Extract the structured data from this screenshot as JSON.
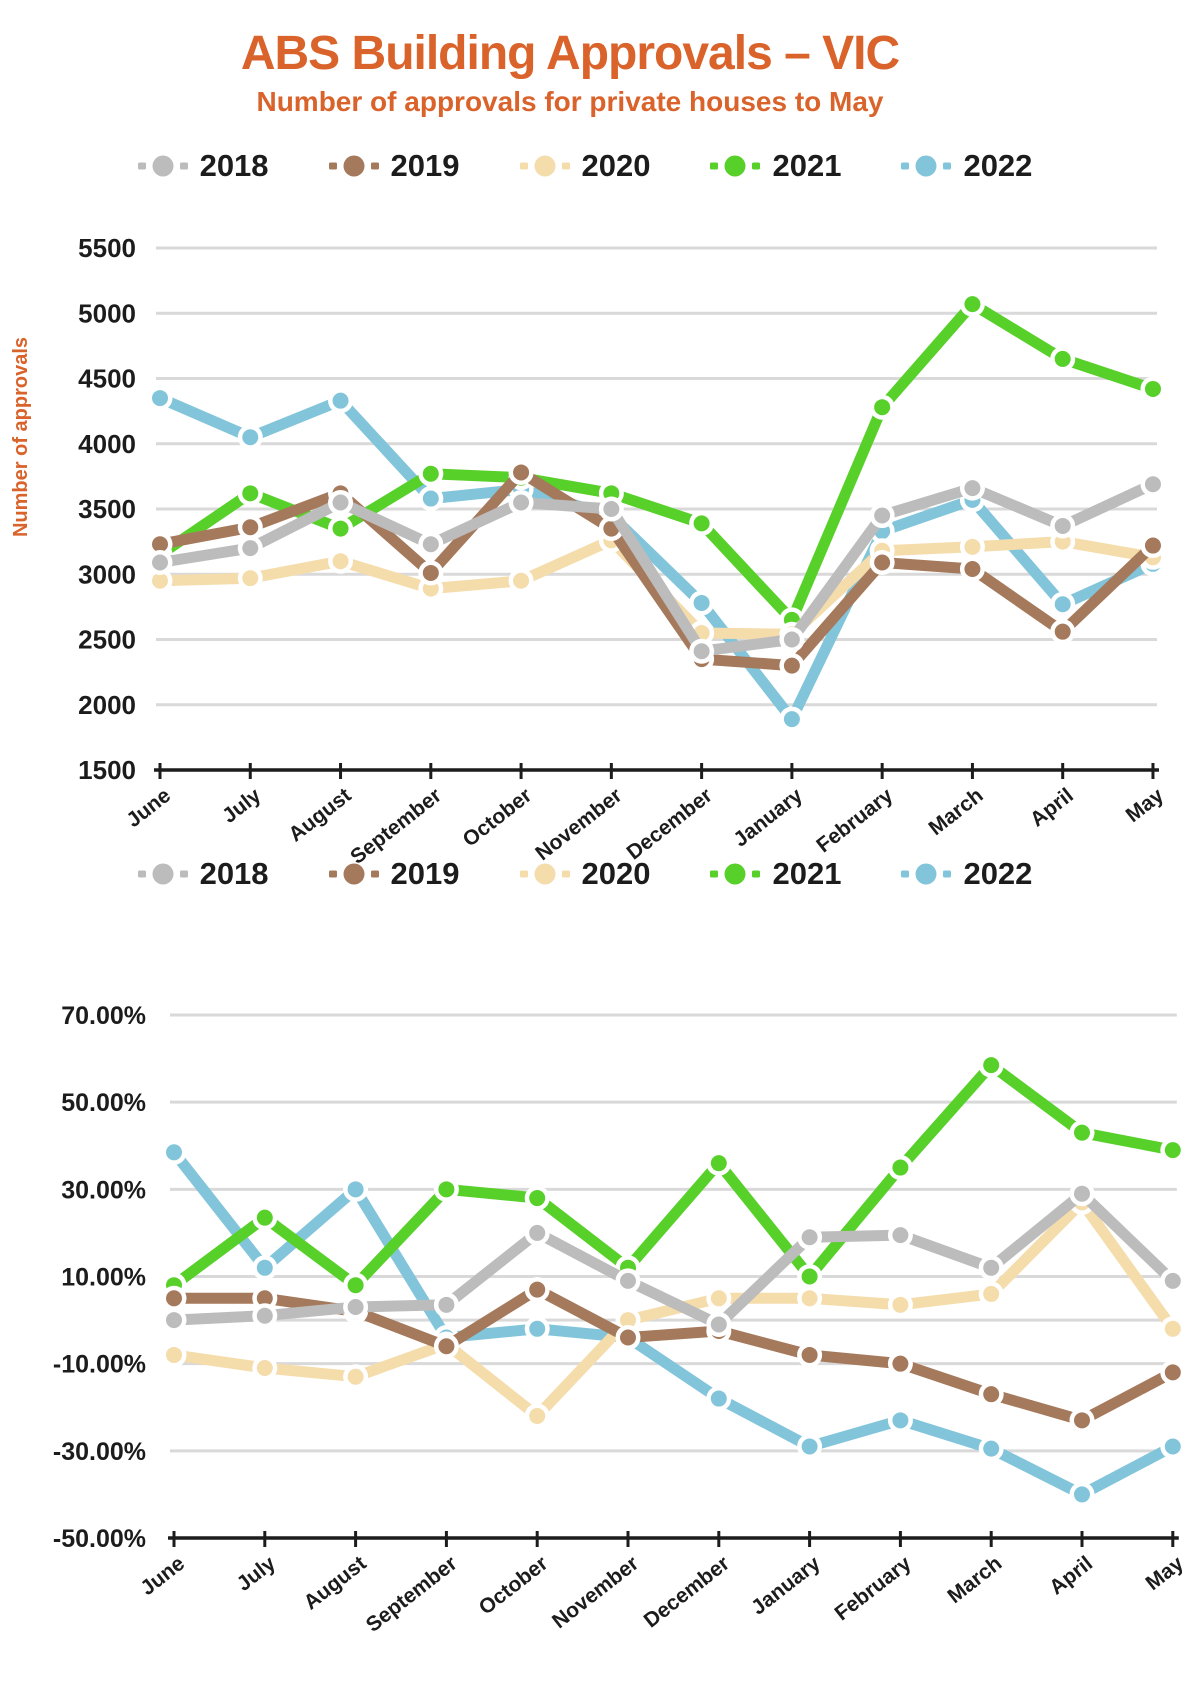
{
  "title": "ABS Building Approvals – VIC",
  "subtitle": "Number of approvals for private houses to May",
  "colors": {
    "accent_orange": "#d9632a",
    "grid": "#d9d9d9",
    "axis": "#1c1c1c",
    "text": "#1c1c1c",
    "marker_ring": "#ffffff"
  },
  "legend": [
    "2018",
    "2019",
    "2020",
    "2021",
    "2022"
  ],
  "chart_data": [
    {
      "type": "line",
      "name": "number-of-approvals",
      "ylabel": "Number of approvals",
      "categories": [
        "June",
        "July",
        "August",
        "September",
        "October",
        "November",
        "December",
        "January",
        "February",
        "March",
        "April",
        "May"
      ],
      "ylim": [
        1500,
        5500
      ],
      "yticks": [
        5500,
        5000,
        4500,
        4000,
        3500,
        3000,
        2500,
        2000,
        1500
      ],
      "ytick_format": "number",
      "grid": true,
      "legend_position": "top",
      "series": [
        {
          "name": "2018",
          "color": "#bcbcbc",
          "values": [
            3090,
            3200,
            3550,
            3230,
            3550,
            3500,
            2410,
            2500,
            3450,
            3660,
            3370,
            3690
          ]
        },
        {
          "name": "2019",
          "color": "#a5795b",
          "values": [
            3230,
            3360,
            3620,
            3010,
            3780,
            3350,
            2350,
            2300,
            3090,
            3040,
            2560,
            3220
          ]
        },
        {
          "name": "2020",
          "color": "#f5dcab",
          "values": [
            2950,
            2970,
            3100,
            2890,
            2950,
            3260,
            2550,
            2540,
            3180,
            3210,
            3250,
            3130
          ]
        },
        {
          "name": "2021",
          "color": "#58d02a",
          "values": [
            3150,
            3620,
            3350,
            3770,
            3740,
            3620,
            3390,
            2650,
            4280,
            5070,
            4650,
            4420
          ]
        },
        {
          "name": "2022",
          "color": "#82c5db",
          "values": [
            4350,
            4050,
            4330,
            3580,
            3650,
            3450,
            2780,
            1890,
            3330,
            3570,
            2770,
            3080
          ]
        }
      ]
    },
    {
      "type": "line",
      "name": "yoy-percent-change",
      "ylabel": "",
      "categories": [
        "June",
        "July",
        "August",
        "September",
        "October",
        "November",
        "December",
        "January",
        "February",
        "March",
        "April",
        "May"
      ],
      "ylim": [
        -50,
        70
      ],
      "yticks": [
        70,
        50,
        30,
        10,
        -10,
        -30,
        -50
      ],
      "ytick_format": "percent",
      "grid": true,
      "zero_line": true,
      "legend_position": "top",
      "series": [
        {
          "name": "2018",
          "color": "#bcbcbc",
          "values": [
            0,
            1,
            3,
            3.5,
            20,
            9,
            -1,
            19,
            19.5,
            12,
            29,
            9
          ]
        },
        {
          "name": "2019",
          "color": "#a5795b",
          "values": [
            5,
            5,
            2,
            -6,
            7,
            -4,
            -2.5,
            -8,
            -10,
            -17,
            -23,
            -12
          ]
        },
        {
          "name": "2020",
          "color": "#f5dcab",
          "values": [
            -8,
            -11,
            -13,
            -5.5,
            -22,
            0,
            5,
            5,
            3.5,
            6,
            27,
            -2
          ]
        },
        {
          "name": "2021",
          "color": "#58d02a",
          "values": [
            8,
            23.5,
            8,
            30,
            28,
            12,
            36,
            10,
            35,
            58.5,
            43,
            39
          ]
        },
        {
          "name": "2022",
          "color": "#82c5db",
          "values": [
            38.5,
            12,
            30,
            -4,
            -2,
            -4,
            -18,
            -29,
            -23,
            -29.5,
            -40,
            -29
          ]
        }
      ]
    }
  ]
}
